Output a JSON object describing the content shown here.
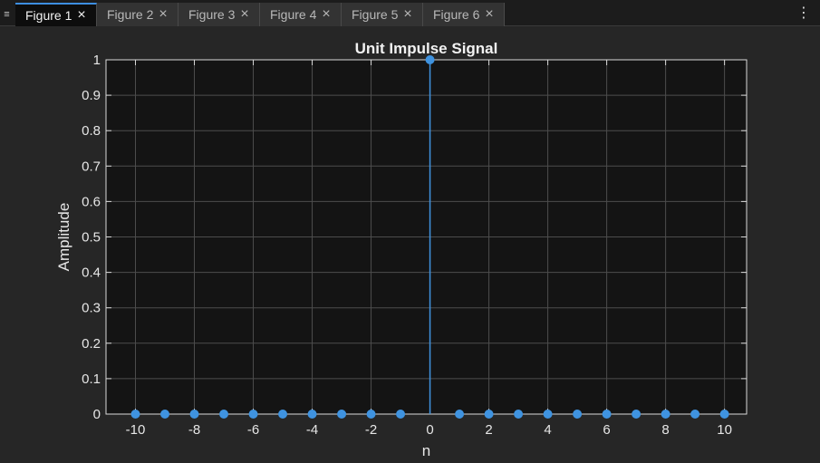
{
  "tabbar": {
    "menu_icon": "hamburger-icon",
    "more_icon": "kebab-menu-icon",
    "tabs": [
      {
        "label": "Figure 1",
        "active": true
      },
      {
        "label": "Figure 2",
        "active": false
      },
      {
        "label": "Figure 3",
        "active": false
      },
      {
        "label": "Figure 4",
        "active": false
      },
      {
        "label": "Figure 5",
        "active": false
      },
      {
        "label": "Figure 6",
        "active": false
      }
    ]
  },
  "colors": {
    "figure_bg": "#262626",
    "axes_bg": "#141414",
    "grid": "#4d4d4d",
    "axis": "#d9d9d9",
    "series": "#3f93e0",
    "text": "#e6e6e6"
  },
  "chart_data": {
    "type": "stem",
    "title": "Unit Impulse Signal",
    "xlabel": "n",
    "ylabel": "Amplitude",
    "xlim": [
      -11,
      10.75
    ],
    "ylim": [
      0,
      1
    ],
    "xticks": [
      -10,
      -8,
      -6,
      -4,
      -2,
      0,
      2,
      4,
      6,
      8,
      10
    ],
    "yticks": [
      0,
      0.1,
      0.2,
      0.3,
      0.4,
      0.5,
      0.6,
      0.7,
      0.8,
      0.9,
      1
    ],
    "grid": true,
    "x": [
      -10,
      -9,
      -8,
      -7,
      -6,
      -5,
      -4,
      -3,
      -2,
      -1,
      0,
      1,
      2,
      3,
      4,
      5,
      6,
      7,
      8,
      9,
      10
    ],
    "y": [
      0,
      0,
      0,
      0,
      0,
      0,
      0,
      0,
      0,
      0,
      1,
      0,
      0,
      0,
      0,
      0,
      0,
      0,
      0,
      0,
      0
    ]
  }
}
